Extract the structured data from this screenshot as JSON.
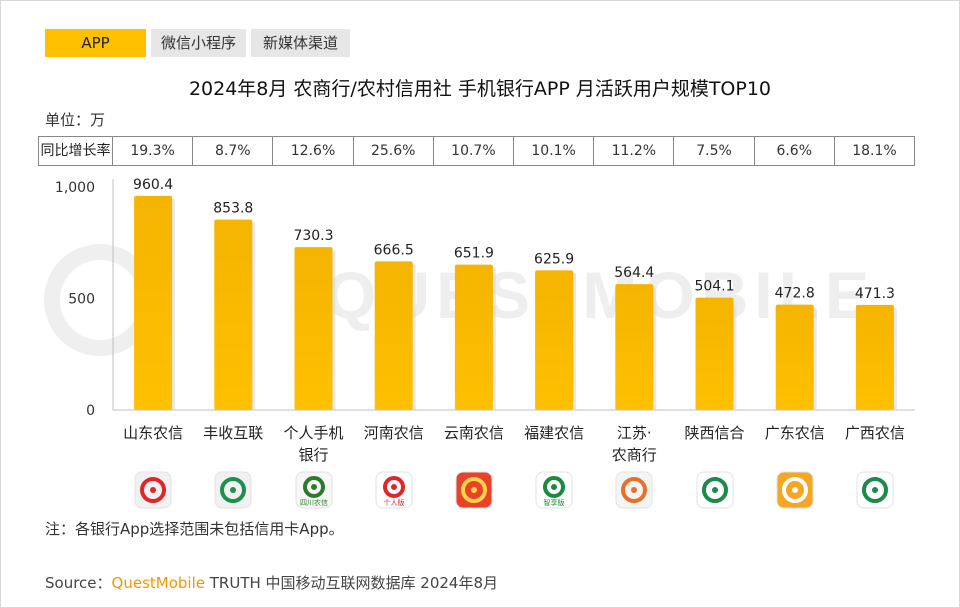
{
  "tabs": [
    {
      "label": "APP",
      "active": true
    },
    {
      "label": "微信小程序",
      "active": false
    },
    {
      "label": "新媒体渠道",
      "active": false
    }
  ],
  "title": "2024年8月 农商行/农村信用社 手机银行APP 月活跃用户规模TOP10",
  "unit_label": "单位：万",
  "growth_row": {
    "header": "同比增长率",
    "values": [
      "19.3%",
      "8.7%",
      "12.6%",
      "25.6%",
      "10.7%",
      "10.1%",
      "11.2%",
      "7.5%",
      "6.6%",
      "18.1%"
    ]
  },
  "watermark": "QUESTMOBILE",
  "chart_data": {
    "type": "bar",
    "categories": [
      "山东农信",
      "丰收互联",
      "个人手机\n银行",
      "河南农信",
      "云南农信",
      "福建农信",
      "江苏·\n农商行",
      "陕西信合",
      "广东农信",
      "广西农信"
    ],
    "values": [
      960.4,
      853.8,
      730.3,
      666.5,
      651.9,
      625.9,
      564.4,
      504.1,
      472.8,
      471.3
    ],
    "value_labels": [
      "960.4",
      "853.8",
      "730.3",
      "666.5",
      "651.9",
      "625.9",
      "564.4",
      "504.1",
      "472.8",
      "471.3"
    ],
    "y_ticks": [
      "1,000",
      "500",
      "0"
    ],
    "y_tick_values": [
      1000,
      500,
      0
    ],
    "ylim": [
      0,
      1000
    ],
    "xlabel": "",
    "ylabel": "",
    "bar_color": "#ffc000",
    "bar_color_dark": "#f4b400"
  },
  "bank_icons": [
    {
      "name": "shandong-rural-credit-icon",
      "bg": "#f1f1f1",
      "fg": "#e0262a",
      "text": ""
    },
    {
      "name": "fengshou-hulian-icon",
      "bg": "#f1f1f1",
      "fg": "#1d8f4e",
      "text": ""
    },
    {
      "name": "sichuan-rural-credit-icon",
      "bg": "#f7f7f7",
      "fg": "#2d7a2d",
      "text": "四川农信"
    },
    {
      "name": "henan-rural-credit-icon",
      "bg": "#ffffff",
      "fg": "#e0262a",
      "text": "个人版"
    },
    {
      "name": "yunnan-rural-credit-icon",
      "bg": "#e8432a",
      "fg": "#ffd34a",
      "text": ""
    },
    {
      "name": "fujian-rural-credit-icon",
      "bg": "#ffffff",
      "fg": "#1c8a3e",
      "text": "智享版"
    },
    {
      "name": "jiangsu-rural-bank-icon",
      "bg": "#f4f4f4",
      "fg": "#e8702a",
      "text": ""
    },
    {
      "name": "shaanxi-xinhe-icon",
      "bg": "#ffffff",
      "fg": "#1b8a4a",
      "text": ""
    },
    {
      "name": "guangdong-rural-credit-icon",
      "bg": "#f5a623",
      "fg": "#ffffff",
      "text": ""
    },
    {
      "name": "guangxi-rural-credit-icon",
      "bg": "#ffffff",
      "fg": "#1b8a4a",
      "text": ""
    }
  ],
  "note": "注：各银行App选择范围未包括信用卡App。",
  "source": {
    "prefix": "Source：",
    "brand": "QuestMobile",
    "rest": " TRUTH 中国移动互联网数据库 2024年8月"
  }
}
